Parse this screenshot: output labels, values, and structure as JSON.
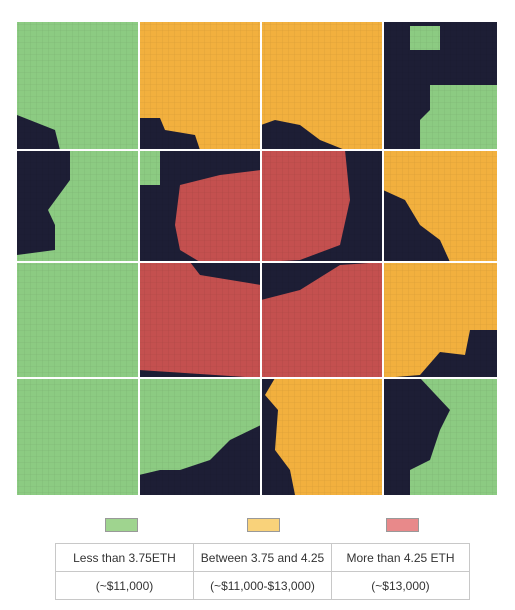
{
  "legend": {
    "items": [
      {
        "label": "Less than 3.75ETH",
        "sub": "(~$11,000)",
        "color": "#9fd48f"
      },
      {
        "label": "Between 3.75 and 4.25",
        "sub": "(~$11,000-$13,000)",
        "color": "#f9d27a"
      },
      {
        "label": "More than 4.25 ETH",
        "sub": "(~$13,000)",
        "color": "#e8898a"
      }
    ]
  }
}
